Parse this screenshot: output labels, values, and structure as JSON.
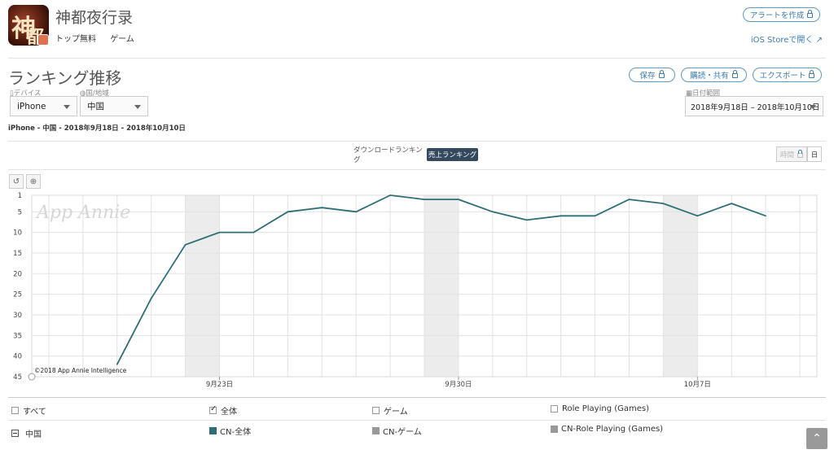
{
  "app": {
    "title": "神都夜行录",
    "meta": [
      "トップ無料",
      "ゲーム"
    ],
    "alert_button": "アラートを作成",
    "ios_link": "iOS Storeで開く"
  },
  "section": {
    "title": "ランキング推移",
    "save_button": "保存",
    "subscribe_button": "購読・共有",
    "export_button": "エクスポート"
  },
  "filters": {
    "device_label": "デバイス",
    "device_value": "iPhone",
    "country_label": "国/地域",
    "country_value": "中国",
    "date_label": "日付範囲",
    "date_value": "2018年9月18日 – 2018年10月10日"
  },
  "summary": "iPhone - 中国 - 2018年9月18日 - 2018年10月10日",
  "tabs": {
    "download": "ダウンロードランキング",
    "revenue": "売上ランキング"
  },
  "granularity": {
    "hourly": "時間",
    "daily": "日"
  },
  "chart_data": {
    "type": "line",
    "watermark": "App Annie",
    "copyright": "©2018 App Annie Intelligence",
    "ylim": [
      1,
      45
    ],
    "y_reversed": true,
    "y_ticks": [
      "1",
      "5",
      "10",
      "15",
      "20",
      "25",
      "30",
      "35",
      "40",
      "45"
    ],
    "x_tick_labels": [
      "9月23日",
      "9月30日",
      "10月7日"
    ],
    "x_tick_dates": [
      "2018-09-23",
      "2018-09-30",
      "2018-10-07"
    ],
    "grid": true,
    "color": "#2e6f77",
    "series": [
      {
        "name": "CN-全体",
        "x": [
          "2018-09-20",
          "2018-09-21",
          "2018-09-22",
          "2018-09-23",
          "2018-09-24",
          "2018-09-25",
          "2018-09-26",
          "2018-09-27",
          "2018-09-28",
          "2018-09-29",
          "2018-09-30",
          "2018-10-01",
          "2018-10-02",
          "2018-10-03",
          "2018-10-04",
          "2018-10-05",
          "2018-10-06",
          "2018-10-07",
          "2018-10-08",
          "2018-10-09"
        ],
        "values": [
          42,
          26,
          13,
          10,
          10,
          5,
          4,
          5,
          1,
          2,
          2,
          5,
          7,
          6,
          6,
          2,
          3,
          6,
          3,
          6
        ]
      }
    ]
  },
  "legend": {
    "all_label": "すべて",
    "total_label": "全体",
    "game_label": "ゲーム",
    "rpg_label": "Role Playing (Games)",
    "country": "中国",
    "cn_total": "CN-全体",
    "cn_game": "CN-ゲーム",
    "cn_rpg": "CN-Role Playing (Games)",
    "swatch_total": "#2e6f77",
    "swatch_other": "#999999"
  }
}
